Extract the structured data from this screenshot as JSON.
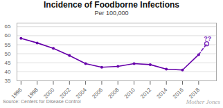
{
  "chart_data": {
    "type": "line",
    "title": "Incidence of Foodborne Infections",
    "subtitle": "Per 100,000",
    "source": "Source: Centers for Disease Control",
    "watermark": "Mother Jones",
    "series": [
      {
        "x": [
          1996,
          1998,
          2000,
          2002,
          2004,
          2006,
          2008,
          2010,
          2012,
          2014,
          2016,
          2018
        ],
        "values": [
          58.5,
          56.0,
          53.0,
          49.0,
          44.5,
          42.5,
          43.0,
          44.5,
          44.0,
          41.5,
          41.0,
          49.5
        ],
        "color": "#6600aa",
        "line_style": "solid",
        "marker": "dot"
      },
      {
        "x": [
          2018,
          2019
        ],
        "values": [
          49.5,
          55.5
        ],
        "color": "#7722bb",
        "line_style": "dashed",
        "marker": "open_end"
      }
    ],
    "annotations": [
      {
        "text": "??",
        "x": 2019.1,
        "y": 57.2,
        "color": "#7722bb"
      }
    ],
    "xlim": [
      1995.5,
      2020.2
    ],
    "xticks": [
      1996,
      1998,
      2000,
      2002,
      2004,
      2006,
      2008,
      2010,
      2012,
      2014,
      2016,
      2018
    ],
    "ylim": [
      35,
      67
    ],
    "yticks": [
      35,
      40,
      45,
      50,
      55,
      60,
      65
    ],
    "grid": "y"
  }
}
